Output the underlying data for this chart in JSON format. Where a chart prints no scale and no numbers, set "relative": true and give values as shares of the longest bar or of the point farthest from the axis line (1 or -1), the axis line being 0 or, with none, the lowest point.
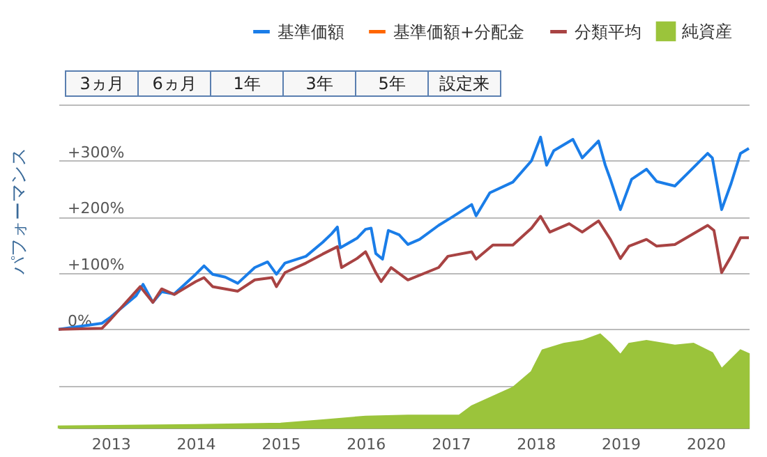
{
  "chart_data": [
    {
      "type": "line",
      "ylabel": "パフォーマンス",
      "annotations": [
        "3ヵ月",
        "6ヵ月",
        "1年",
        "3年",
        "5年",
        "設定来"
      ],
      "xlim": [
        "2012-05-22",
        "2020-07-05"
      ],
      "xticks": [
        "2013",
        "2014",
        "2015",
        "2016",
        "2017",
        "2018",
        "2019",
        "2020"
      ],
      "ylim": [
        -175,
        400
      ],
      "yticks": [
        {
          "value": -100,
          "label": null
        },
        {
          "value": 0,
          "label": "0%"
        },
        {
          "value": 100,
          "label": "+100%"
        },
        {
          "value": 200,
          "label": "+200%"
        },
        {
          "value": 300,
          "label": "+300%"
        },
        {
          "value": 400,
          "label": null
        }
      ],
      "grid": "y",
      "legend": "top right",
      "series": [
        {
          "name": "基準価額",
          "color": "#1a7de8",
          "x": [
            "2012-05-22",
            "2012-11-25",
            "2013-01-01",
            "2013-04-20",
            "2013-05-20",
            "2013-07-01",
            "2013-08-08",
            "2013-10-01",
            "2014-01-01",
            "2014-02-06",
            "2014-03-15",
            "2014-05-08",
            "2014-07-01",
            "2014-09-12",
            "2014-11-06",
            "2014-12-14",
            "2015-01-20",
            "2015-04-20",
            "2015-07-01",
            "2015-08-08",
            "2015-09-02",
            "2015-09-14",
            "2015-11-25",
            "2016-01-01",
            "2016-01-25",
            "2016-02-14",
            "2016-03-14",
            "2016-04-08",
            "2016-05-25",
            "2016-07-01",
            "2016-08-20",
            "2016-11-10",
            "2017-01-08",
            "2017-04-01",
            "2017-04-20",
            "2017-06-18",
            "2017-09-25",
            "2017-12-14",
            "2018-01-22",
            "2018-02-17",
            "2018-03-20",
            "2018-06-10",
            "2018-07-20",
            "2018-09-28",
            "2018-10-27",
            "2018-11-18",
            "2018-12-31",
            "2019-02-17",
            "2019-04-22",
            "2019-06-05",
            "2019-08-22",
            "2019-10-12",
            "2020-01-10",
            "2020-01-30",
            "2020-03-10",
            "2020-04-20",
            "2020-05-30",
            "2020-07-05"
          ],
          "values": [
            0,
            11,
            22,
            60,
            80,
            48,
            67,
            63,
            98,
            113,
            98,
            93,
            82,
            110,
            120,
            98,
            118,
            130,
            155,
            170,
            182,
            145,
            162,
            178,
            180,
            135,
            125,
            176,
            168,
            151,
            160,
            185,
            200,
            222,
            202,
            243,
            262,
            300,
            342,
            292,
            318,
            338,
            305,
            335,
            292,
            267,
            213,
            267,
            285,
            263,
            255,
            276,
            313,
            305,
            213,
            260,
            313,
            322
          ]
        },
        {
          "name": "基準価額+分配金",
          "color": "#ff6600"
        },
        {
          "name": "分類平均",
          "color": "#a84343",
          "x": [
            "2012-05-22",
            "2012-11-25",
            "2013-01-01",
            "2013-05-08",
            "2013-07-01",
            "2013-08-08",
            "2013-10-01",
            "2014-01-01",
            "2014-02-06",
            "2014-03-15",
            "2014-07-01",
            "2014-09-12",
            "2014-11-25",
            "2014-12-14",
            "2015-01-20",
            "2015-04-20",
            "2015-07-01",
            "2015-09-02",
            "2015-09-20",
            "2015-11-25",
            "2016-01-01",
            "2016-02-14",
            "2016-03-08",
            "2016-04-20",
            "2016-07-01",
            "2016-11-10",
            "2016-12-20",
            "2017-04-01",
            "2017-04-20",
            "2017-07-01",
            "2017-09-25",
            "2017-12-14",
            "2018-01-22",
            "2018-03-03",
            "2018-05-25",
            "2018-07-20",
            "2018-09-28",
            "2018-11-18",
            "2018-12-31",
            "2019-02-06",
            "2019-04-22",
            "2019-06-05",
            "2019-08-22",
            "2020-01-10",
            "2020-02-06",
            "2020-03-10",
            "2020-04-20",
            "2020-05-30",
            "2020-07-05"
          ],
          "values": [
            0,
            2,
            18,
            76,
            48,
            72,
            62,
            85,
            92,
            76,
            68,
            88,
            92,
            76,
            101,
            118,
            134,
            147,
            110,
            126,
            138,
            101,
            85,
            110,
            88,
            110,
            130,
            138,
            125,
            150,
            150,
            180,
            201,
            173,
            188,
            173,
            193,
            160,
            126,
            148,
            160,
            148,
            151,
            185,
            176,
            101,
            130,
            163,
            163
          ]
        }
      ]
    },
    {
      "type": "area",
      "relative": true,
      "xlim": [
        "2012-05-22",
        "2020-07-05"
      ],
      "legend": "top right",
      "series": [
        {
          "name": "純資産",
          "color": "#9bc43b",
          "x": [
            "2012-05-22",
            "2014-01-01",
            "2015-01-01",
            "2015-07-01",
            "2016-01-01",
            "2016-07-01",
            "2017-02-06",
            "2017-04-01",
            "2017-09-25",
            "2017-12-14",
            "2018-01-30",
            "2018-05-01",
            "2018-07-20",
            "2018-10-05",
            "2018-11-18",
            "2018-12-31",
            "2019-02-06",
            "2019-04-22",
            "2019-08-22",
            "2019-11-10",
            "2020-01-30",
            "2020-03-10",
            "2020-05-30",
            "2020-07-05"
          ],
          "values": [
            0.015,
            0.03,
            0.045,
            0.08,
            0.12,
            0.13,
            0.13,
            0.23,
            0.43,
            0.6,
            0.83,
            0.9,
            0.93,
            1,
            0.9,
            0.78,
            0.9,
            0.93,
            0.88,
            0.9,
            0.8,
            0.63,
            0.83,
            0.79
          ]
        }
      ]
    }
  ]
}
